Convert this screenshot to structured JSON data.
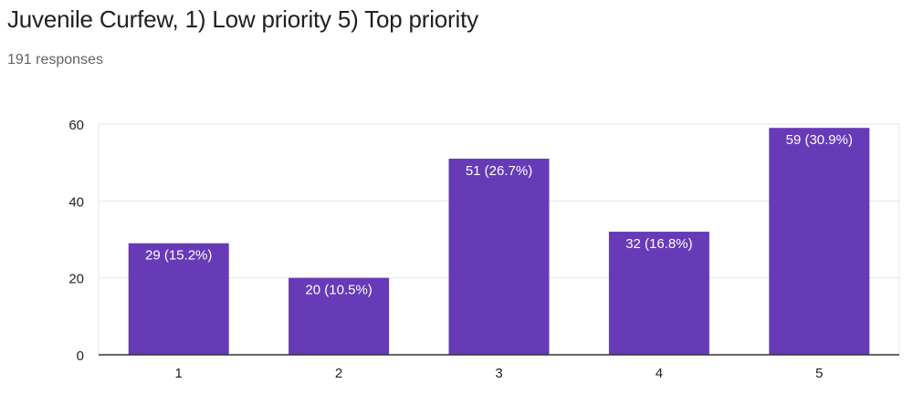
{
  "header": {
    "title": "Juvenile Curfew, 1) Low priority 5) Top priority",
    "responses": "191 responses"
  },
  "colors": {
    "bar": "#673ab7",
    "grid": "#e6e6e6",
    "axis": "#333333",
    "tick_text": "#222222",
    "bar_label": "#ffffff"
  },
  "chart_data": {
    "type": "bar",
    "categories": [
      "1",
      "2",
      "3",
      "4",
      "5"
    ],
    "values": [
      29,
      20,
      51,
      32,
      59
    ],
    "data_labels": [
      "29 (15.2%)",
      "20 (10.5%)",
      "51 (26.7%)",
      "32 (16.8%)",
      "59 (30.9%)"
    ],
    "yticks": [
      0,
      20,
      40,
      60
    ],
    "ylim": [
      0,
      60
    ],
    "grid": true,
    "legend": "none",
    "xlabel": "",
    "ylabel": ""
  }
}
